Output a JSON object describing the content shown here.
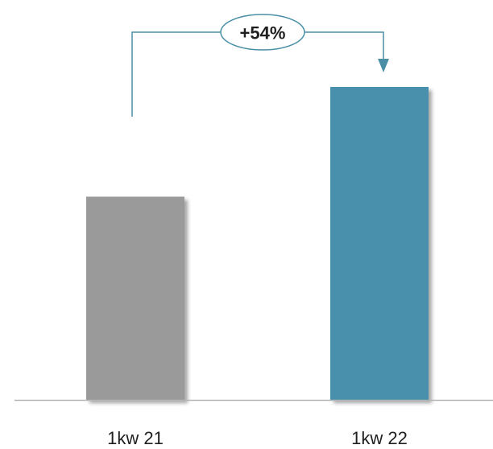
{
  "chart_data": {
    "type": "bar",
    "categories": [
      "1kw 21",
      "1kw 22"
    ],
    "values": [
      100,
      154
    ],
    "ylim": [
      0,
      180
    ],
    "grid": false,
    "colors": [
      "#9a9a9a",
      "#4a90ad"
    ],
    "annotation": {
      "text": "+54%",
      "from": "1kw 21",
      "to": "1kw 22",
      "color": "#4a8fa6"
    }
  }
}
